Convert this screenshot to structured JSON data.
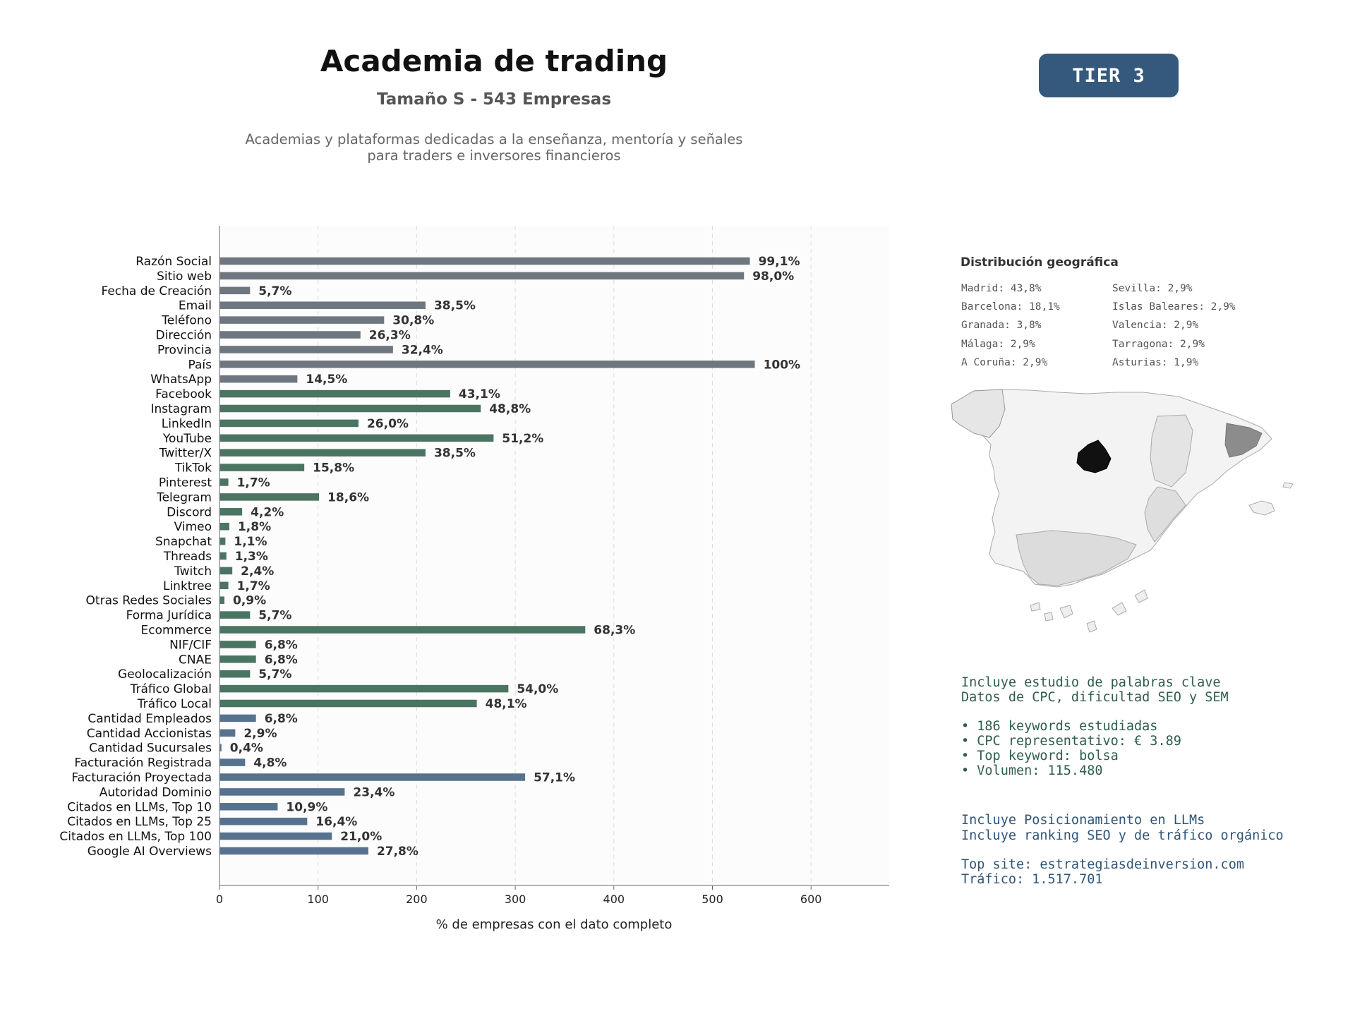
{
  "header": {
    "title": "Academia de trading",
    "subtitle": "Tamaño S - 543 Empresas",
    "description_line1": "Academias y plataformas dedicadas a la enseñanza, mentoría y señales",
    "description_line2": "para traders e inversores financieros",
    "tier": "TIER 3"
  },
  "colors": {
    "gray": "#6e7780",
    "green": "#4a7563",
    "blue": "#56728f",
    "badge": "#35587d"
  },
  "chart_data": {
    "type": "bar",
    "orientation": "horizontal",
    "xlabel": "% de empresas con el dato completo",
    "xlim": [
      0,
      680
    ],
    "xticks": [
      0,
      100,
      200,
      300,
      400,
      500,
      600
    ],
    "grid": "vertical dashed",
    "categories": [
      "Razón Social",
      "Sitio web",
      "Fecha de Creación",
      "Email",
      "Teléfono",
      "Dirección",
      "Provincia",
      "País",
      "WhatsApp",
      "Facebook",
      "Instagram",
      "LinkedIn",
      "YouTube",
      "Twitter/X",
      "TikTok",
      "Pinterest",
      "Telegram",
      "Discord",
      "Vimeo",
      "Snapchat",
      "Threads",
      "Twitch",
      "Linktree",
      "Otras Redes Sociales",
      "Forma Jurídica",
      "Ecommerce",
      "NIF/CIF",
      "CNAE",
      "Geolocalización",
      "Tráfico Global",
      "Tráfico Local",
      "Cantidad Empleados",
      "Cantidad Accionistas",
      "Cantidad Sucursales",
      "Facturación Registrada",
      "Facturación Proyectada",
      "Autoridad Dominio",
      "Citados en LLMs, Top 10",
      "Citados en LLMs, Top 25",
      "Citados en LLMs, Top 100",
      "Google AI Overviews"
    ],
    "values": [
      538,
      532,
      31,
      209,
      167,
      143,
      176,
      543,
      79,
      234,
      265,
      141,
      278,
      209,
      86,
      9,
      101,
      23,
      10,
      6,
      7,
      13,
      9,
      5,
      31,
      371,
      37,
      37,
      31,
      293,
      261,
      37,
      16,
      2,
      26,
      310,
      127,
      59,
      89,
      114,
      151
    ],
    "labels": [
      "99,1%",
      "98,0%",
      "5,7%",
      "38,5%",
      "30,8%",
      "26,3%",
      "32,4%",
      "100%",
      "14,5%",
      "43,1%",
      "48,8%",
      "26,0%",
      "51,2%",
      "38,5%",
      "15,8%",
      "1,7%",
      "18,6%",
      "4,2%",
      "1,8%",
      "1,1%",
      "1,3%",
      "2,4%",
      "1,7%",
      "0,9%",
      "5,7%",
      "68,3%",
      "6,8%",
      "6,8%",
      "5,7%",
      "54,0%",
      "48,1%",
      "6,8%",
      "2,9%",
      "0,4%",
      "4,8%",
      "57,1%",
      "23,4%",
      "10,9%",
      "16,4%",
      "21,0%",
      "27,8%"
    ],
    "groups": [
      "gray",
      "gray",
      "gray",
      "gray",
      "gray",
      "gray",
      "gray",
      "gray",
      "gray",
      "green",
      "green",
      "green",
      "green",
      "green",
      "green",
      "green",
      "green",
      "green",
      "green",
      "green",
      "green",
      "green",
      "green",
      "green",
      "green",
      "green",
      "green",
      "green",
      "green",
      "green",
      "green",
      "blue",
      "blue",
      "blue",
      "blue",
      "blue",
      "blue",
      "blue",
      "blue",
      "blue",
      "blue"
    ]
  },
  "geo": {
    "title": "Distribución geográfica",
    "items": [
      "Madrid: 43,8%",
      "Sevilla: 2,9%",
      "Barcelona: 18,1%",
      "Islas Baleares: 2,9%",
      "Granada: 3,8%",
      "Valencia: 2,9%",
      "Málaga: 2,9%",
      "Tarragona: 2,9%",
      "A Coruña: 2,9%",
      "Asturias: 1,9%"
    ]
  },
  "info": {
    "keywords_line1": "Incluye estudio de palabras clave",
    "keywords_line2": "Datos de CPC, dificultad SEO y SEM",
    "bullet1": "• 186 keywords estudiadas",
    "bullet2": "• CPC representativo: € 3.89",
    "bullet3": "• Top keyword: bolsa",
    "bullet4": "• Volumen: 115.480",
    "llm_line1": "Incluye Posicionamiento en LLMs",
    "llm_line2": "Incluye ranking SEO y de tráfico orgánico",
    "top_site": "Top site: estrategiasdeinversion.com",
    "traffic": "Tráfico: 1.517.701"
  }
}
